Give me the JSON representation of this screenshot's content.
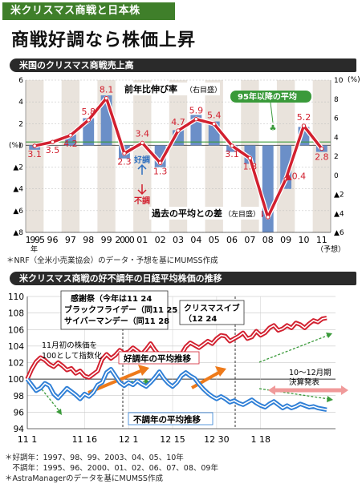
{
  "header": {
    "tag": "米クリスマス商戦と日本株",
    "headline": "商戦好調なら株価上昇"
  },
  "chart1": {
    "title": "米国のクリスマス商戦売上高",
    "line_label_main": "前年比伸び率",
    "line_label_sub": "（右目盛）",
    "bar_label_main": "過去の平均との差",
    "bar_label_sub": "（左目盛）",
    "avg_label": "95年以降の平均",
    "good_label": "好調",
    "bad_label": "不調",
    "right_unit": "(%)",
    "left_unit": "(%)",
    "year_suffix": "年",
    "forecast_label": "（予想）",
    "source": "＊NRF（全米小売業協会）のデータ・予想を基にMUMSS作成"
  },
  "chart2": {
    "title": "米クリスマス商戦の好不調年の日経平均株価の推移",
    "good_label": "好調年の平均推移",
    "bad_label": "不調年の平均推移",
    "index_note_1": "11月初の株価を",
    "index_note_2": "100として指数化",
    "earnings_label_1": "10～12月期",
    "earnings_label_2": "決算発表",
    "event_box1_1": "感謝祭（今年は11 24",
    "event_box1_2": "ブラックフライデー（同11 25",
    "event_box1_3": "サイバーマンデー（同11 28",
    "event_box2_1": "クリスマスイブ",
    "event_box2_2": "（12 24",
    "note_good": "＊好調年：1997、98、99、2003、04、05、10年",
    "note_bad": "　不調年：1995、96、2000、01、02、06、07、08、09年",
    "source": "＊AstraManagerのデータを基にMUMSS作成"
  },
  "chart_data": [
    {
      "type": "bar",
      "title": "米国のクリスマス商戦売上高",
      "categories": [
        "1995",
        "96",
        "97",
        "98",
        "99",
        "2000",
        "01",
        "02",
        "03",
        "04",
        "05",
        "06",
        "07",
        "08",
        "09",
        "10",
        "11"
      ],
      "category_labels": [
        "1995",
        "96",
        "97",
        "98",
        "99",
        "2000",
        "01",
        "02",
        "03",
        "04",
        "05",
        "06",
        "07",
        "08",
        "09",
        "10",
        "11"
      ],
      "series": [
        {
          "name": "前年比伸び率",
          "axis": "right",
          "kind": "line",
          "values": [
            3.1,
            3.5,
            4.2,
            5.8,
            8.1,
            2.3,
            3.4,
            1.3,
            4.7,
            5.9,
            5.4,
            3.1,
            1.8,
            -4.4,
            -0.4,
            5.2,
            2.8
          ],
          "value_labels": [
            "3.1",
            "3.5",
            "4.2",
            "5.8",
            "8.1",
            "2.3",
            "3.4",
            "1.3",
            "4.7",
            "5.9",
            "5.4",
            "3.1",
            "1.8",
            "▲4.4",
            "▲0.4",
            "5.2",
            "2.8"
          ]
        },
        {
          "name": "過去の平均との差",
          "axis": "left",
          "kind": "bar",
          "values": [
            -0.4,
            0,
            1,
            2.5,
            4.6,
            -1.2,
            0,
            -2,
            1.4,
            2.8,
            2.2,
            -0.6,
            -1.7,
            -8,
            -4,
            1.7,
            -0.6
          ]
        }
      ],
      "average_line": 3.5,
      "left_axis": {
        "range": [
          -8,
          6
        ],
        "ticks": [
          6,
          4,
          2,
          0,
          -2,
          -4,
          -6,
          -8
        ],
        "tick_labels": [
          "6",
          "4",
          "2",
          "0",
          "▲2",
          "▲4",
          "▲6",
          "▲8"
        ]
      },
      "right_axis": {
        "range": [
          -6,
          10
        ],
        "ticks": [
          10,
          8,
          6,
          4,
          2,
          0,
          -2,
          -4,
          -6
        ],
        "tick_labels": [
          "10",
          "8",
          "6",
          "4",
          "2",
          "0",
          "▲2",
          "▲4",
          "▲6"
        ]
      },
      "colors": {
        "line": "#d2202f",
        "bar": "#6b8fc8",
        "average": "#3a9a3a",
        "band": "#e9e3dc"
      }
    },
    {
      "type": "line",
      "title": "米クリスマス商戦の好不調年の日経平均株価の推移",
      "x_ticks": [
        0,
        13,
        23,
        33,
        43,
        53
      ],
      "x_tick_labels": [
        "11 1",
        "11 16",
        "12 1",
        "12 15",
        "12 30",
        "1 18"
      ],
      "x_range": [
        0,
        70
      ],
      "y_range": [
        94,
        110
      ],
      "y_ticks": [
        94,
        96,
        98,
        100,
        102,
        104,
        106,
        108,
        110
      ],
      "series": [
        {
          "name": "好調年の平均推移",
          "color": "#d2202f",
          "values": [
            100,
            101.2,
            102.1,
            102.6,
            102.3,
            101.8,
            101.5,
            102,
            101.6,
            101.1,
            101.3,
            100.7,
            101,
            100.4,
            100.2,
            100.6,
            101,
            102.4,
            103,
            102.5,
            102.9,
            103.5,
            103.1,
            103.3,
            103.8,
            103.4,
            103,
            103.6,
            104.3,
            103.5,
            102.9,
            102.7,
            103.1,
            102.4,
            102.8,
            103,
            103.9,
            104.4,
            104.1,
            103.8,
            104.2,
            104.6,
            104.3,
            104.9,
            105.3,
            105.2,
            104.6,
            104.9,
            105.2,
            105.6,
            104.9,
            105.1,
            105.8,
            105.3,
            105.6,
            106.2,
            106.5,
            105.9,
            106.1,
            106.5,
            106.2,
            106.8,
            106.6,
            106.2,
            106.7,
            107.1,
            106.9,
            107.3,
            107.4
          ]
        },
        {
          "name": "不調年の平均推移",
          "color": "#2f7fd6",
          "values": [
            100,
            99.3,
            98.6,
            98.9,
            99.5,
            99.2,
            98.2,
            97.7,
            98.3,
            98.9,
            98.5,
            98.1,
            97.6,
            98.2,
            97.9,
            98.4,
            99.3,
            99.6,
            100.8,
            101.2,
            100.4,
            99.6,
            99.2,
            99.6,
            99.3,
            99.8,
            99.4,
            99.1,
            99.6,
            100.2,
            100.9,
            100.1,
            99.5,
            99.1,
            99.6,
            100.4,
            100.8,
            100.4,
            100.1,
            99.4,
            98.8,
            98.3,
            97.9,
            97.6,
            97.9,
            97.6,
            97.2,
            97.4,
            97.1,
            96.9,
            97.2,
            97.5,
            97.1,
            96.8,
            96.6,
            97,
            97.3,
            96.9,
            96.5,
            96.8,
            96.5,
            96.7,
            97,
            96.8,
            96.6,
            96.7,
            96.5,
            96.4,
            96.3
          ]
        }
      ]
    }
  ]
}
